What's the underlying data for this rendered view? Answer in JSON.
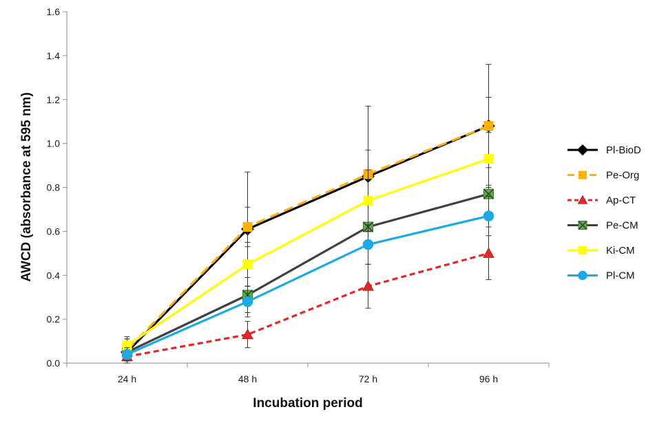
{
  "chart_data": {
    "type": "line",
    "title": "",
    "xlabel": "Incubation period",
    "ylabel": "AWCD (absorbance at 595 nm)",
    "categories": [
      "24 h",
      "48 h",
      "72 h",
      "96 h"
    ],
    "ylim": [
      0,
      1.6
    ],
    "yticks": [
      0.0,
      0.2,
      0.4,
      0.6,
      0.8,
      1.0,
      1.2,
      1.4,
      1.6
    ],
    "ytick_labels": [
      "0.0",
      "0.2",
      "0.4",
      "0.6",
      "0.8",
      "1.0",
      "1.2",
      "1.4",
      "1.6"
    ],
    "grid": false,
    "legend_position": "right",
    "series": [
      {
        "name": "Pl-BioD",
        "values": [
          0.05,
          0.61,
          0.85,
          1.08
        ],
        "errors": [
          0.06,
          0.26,
          0.32,
          0.28
        ],
        "color": "#000000",
        "marker": "diamond",
        "dash": "solid"
      },
      {
        "name": "Pe-Org",
        "values": [
          0.06,
          0.62,
          0.86,
          1.08
        ],
        "errors": [
          0.05,
          0.09,
          0.11,
          0.13
        ],
        "color": "#FFB000",
        "marker": "square",
        "dash": "dashed"
      },
      {
        "name": "Ap-CT",
        "values": [
          0.03,
          0.13,
          0.35,
          0.5
        ],
        "errors": [
          0.03,
          0.06,
          0.1,
          0.12
        ],
        "color": "#E8262A",
        "marker": "triangle",
        "dash": "dashed"
      },
      {
        "name": "Pe-CM",
        "values": [
          0.05,
          0.31,
          0.62,
          0.77
        ],
        "errors": [
          0.04,
          0.08,
          0.1,
          0.12
        ],
        "color": "#404040",
        "marker": "square-x",
        "dash": "solid"
      },
      {
        "name": "Ki-CM",
        "values": [
          0.08,
          0.45,
          0.74,
          0.93
        ],
        "errors": [
          0.04,
          0.1,
          0.14,
          0.12
        ],
        "color": "#FFFF00",
        "marker": "square",
        "dash": "solid"
      },
      {
        "name": "Pl-CM",
        "values": [
          0.04,
          0.28,
          0.54,
          0.67
        ],
        "errors": [
          0.03,
          0.07,
          0.09,
          0.09
        ],
        "color": "#1BAAE6",
        "marker": "circle",
        "dash": "solid"
      }
    ]
  }
}
